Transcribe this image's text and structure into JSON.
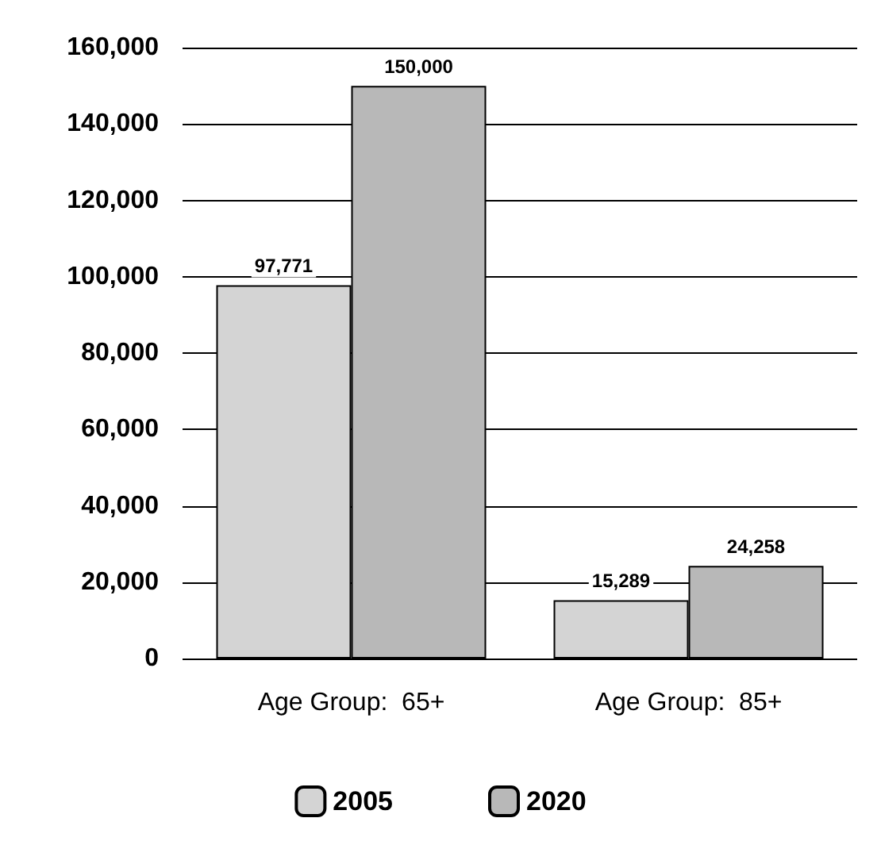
{
  "chart_data": {
    "type": "bar",
    "categories": [
      "Age Group:  65+",
      "Age Group:  85+"
    ],
    "series": [
      {
        "name": "2005",
        "color": "#d4d4d4",
        "values": [
          97771,
          15289
        ],
        "value_labels": [
          "97,771",
          "15,289"
        ]
      },
      {
        "name": "2020",
        "color": "#b8b8b8",
        "values": [
          150000,
          24258
        ],
        "value_labels": [
          "150,000",
          "24,258"
        ]
      }
    ],
    "ylim": [
      0,
      160000
    ],
    "yticks": [
      {
        "value": 0,
        "label": "0"
      },
      {
        "value": 20000,
        "label": "20,000"
      },
      {
        "value": 40000,
        "label": "40,000"
      },
      {
        "value": 60000,
        "label": "60,000"
      },
      {
        "value": 80000,
        "label": "80,000"
      },
      {
        "value": 100000,
        "label": "100,000"
      },
      {
        "value": 120000,
        "label": "120,000"
      },
      {
        "value": 140000,
        "label": "140,000"
      },
      {
        "value": 160000,
        "label": "160,000"
      }
    ],
    "grid": "y",
    "legend": "bottom"
  }
}
